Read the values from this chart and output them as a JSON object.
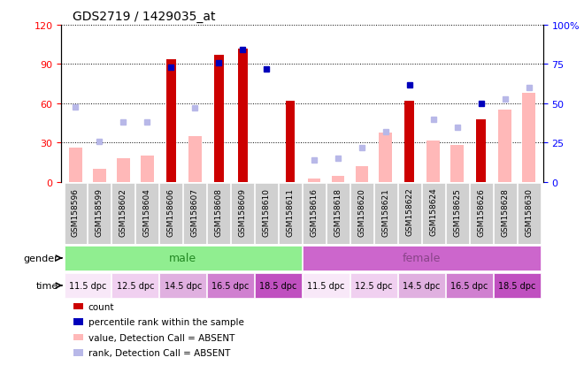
{
  "title": "GDS2719 / 1429035_at",
  "samples": [
    "GSM158596",
    "GSM158599",
    "GSM158602",
    "GSM158604",
    "GSM158606",
    "GSM158607",
    "GSM158608",
    "GSM158609",
    "GSM158610",
    "GSM158611",
    "GSM158616",
    "GSM158618",
    "GSM158620",
    "GSM158621",
    "GSM158622",
    "GSM158624",
    "GSM158625",
    "GSM158626",
    "GSM158628",
    "GSM158630"
  ],
  "count_values": [
    0,
    0,
    0,
    0,
    94,
    0,
    97,
    102,
    0,
    62,
    0,
    0,
    0,
    0,
    62,
    0,
    0,
    48,
    0,
    0
  ],
  "value_absent": [
    26,
    10,
    18,
    20,
    0,
    35,
    0,
    0,
    0,
    0,
    3,
    5,
    12,
    38,
    0,
    32,
    28,
    0,
    55,
    68
  ],
  "percentile_present": [
    null,
    null,
    null,
    null,
    73,
    null,
    76,
    84,
    72,
    null,
    null,
    null,
    null,
    null,
    62,
    null,
    null,
    50,
    null,
    null
  ],
  "rank_absent": [
    48,
    26,
    38,
    38,
    null,
    47,
    null,
    null,
    null,
    null,
    14,
    15,
    22,
    32,
    null,
    40,
    35,
    null,
    53,
    60
  ],
  "ylim_left": [
    0,
    120
  ],
  "ylim_right": [
    0,
    100
  ],
  "y_ticks_left": [
    0,
    30,
    60,
    90,
    120
  ],
  "y_ticks_right": [
    0,
    25,
    50,
    75,
    100
  ],
  "color_count": "#cc0000",
  "color_percentile": "#0000bb",
  "color_value_absent": "#ffb8b8",
  "color_rank_absent": "#b8b8e8",
  "color_male": "#90ee90",
  "color_female": "#cc66cc",
  "color_xticklabel_bg": "#d0d0d0",
  "time_colors": [
    "#f8e8f8",
    "#f0d0f0",
    "#e0b0e0",
    "#d080d0",
    "#c050c0"
  ],
  "time_labels": [
    "11.5 dpc",
    "12.5 dpc",
    "14.5 dpc",
    "16.5 dpc",
    "18.5 dpc"
  ],
  "bar_width": 0.4,
  "absent_bar_width": 0.55,
  "marker_size": 5
}
